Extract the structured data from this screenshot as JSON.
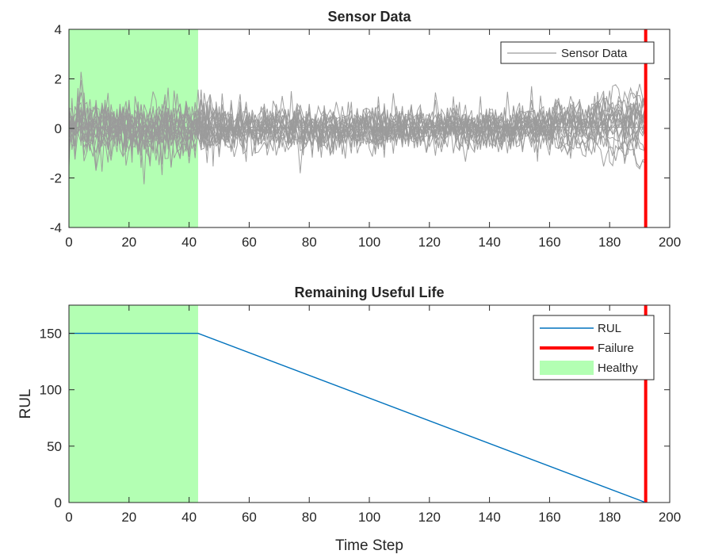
{
  "chart_data": [
    {
      "type": "line",
      "title": "Sensor Data",
      "xlabel": "",
      "ylabel": "",
      "xlim": [
        0,
        200
      ],
      "ylim": [
        -4,
        4
      ],
      "xticks": [
        0,
        20,
        40,
        60,
        80,
        100,
        120,
        140,
        160,
        180,
        200
      ],
      "yticks": [
        -4,
        -2,
        0,
        2,
        4
      ],
      "grid": false,
      "series_count": 20,
      "series_color": "#9b9b9b",
      "healthy_region": [
        0,
        43
      ],
      "failure_x": 192,
      "legend": {
        "placement": "top-right",
        "entries": [
          {
            "label": "Sensor Data",
            "color": "#9b9b9b"
          }
        ]
      }
    },
    {
      "type": "line",
      "title": "Remaining Useful Life",
      "xlabel": "Time Step",
      "ylabel": "RUL",
      "xlim": [
        0,
        200
      ],
      "ylim": [
        0,
        175
      ],
      "xticks": [
        0,
        20,
        40,
        60,
        80,
        100,
        120,
        140,
        160,
        180,
        200
      ],
      "yticks": [
        0,
        50,
        100,
        150
      ],
      "grid": false,
      "series": [
        {
          "name": "RUL",
          "color": "#0072bd",
          "x": [
            0,
            43,
            192
          ],
          "y": [
            150,
            150,
            0
          ]
        }
      ],
      "failure_x": 192,
      "healthy_region": [
        0,
        43
      ],
      "legend": {
        "placement": "top-right",
        "entries": [
          {
            "label": "RUL",
            "color": "#0072bd"
          },
          {
            "label": "Failure",
            "color": "#ff0000"
          },
          {
            "label": "Healthy",
            "color": "#b3ffb3"
          }
        ]
      }
    }
  ],
  "colors": {
    "healthy": "#b3ffb3",
    "failure": "#ff0000",
    "sensor": "#9b9b9b",
    "rul": "#0072bd"
  }
}
